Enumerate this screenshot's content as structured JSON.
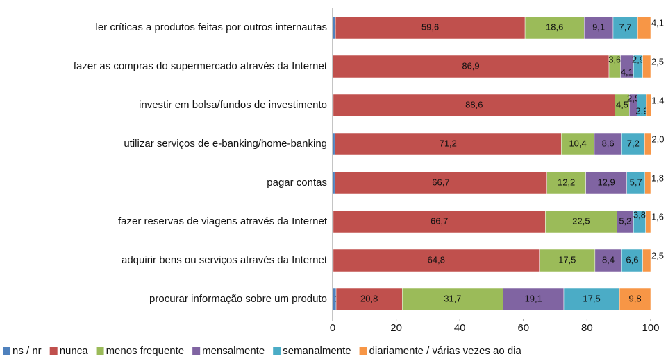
{
  "chart_data": {
    "type": "stacked-bar-horizontal",
    "categories": [
      "ler críticas a produtos feitas por outros internautas",
      "fazer as compras do supermercado através da Internet",
      "investir em bolsa/fundos de investimento",
      "utilizar serviços de e-banking/home-banking",
      "pagar contas",
      "fazer reservas de viagens através da Internet",
      "adquirir bens ou serviços através da Internet",
      "procurar informação sobre um produto"
    ],
    "series": [
      {
        "name": "ns / nr",
        "color": "#4f81bd",
        "values": [
          0.9,
          0.0,
          0.2,
          0.7,
          0.7,
          0.2,
          0.2,
          1.1
        ],
        "value_labels": [
          "0,9",
          "0,0",
          "0,2",
          "0,7",
          "0,7",
          "0,2",
          "0,2",
          "1,1"
        ]
      },
      {
        "name": "nunca",
        "color": "#c0504d",
        "values": [
          59.6,
          86.9,
          88.6,
          71.2,
          66.7,
          66.7,
          64.8,
          20.8
        ],
        "value_labels": [
          "59,6",
          "86,9",
          "88,6",
          "71,2",
          "66,7",
          "66,7",
          "64,8",
          "20,8"
        ]
      },
      {
        "name": "menos frequente",
        "color": "#9bbb59",
        "values": [
          18.6,
          3.6,
          4.5,
          10.4,
          12.2,
          22.5,
          17.5,
          31.7
        ],
        "value_labels": [
          "18,6",
          "3,6",
          "4,5",
          "10,4",
          "12,2",
          "22,5",
          "17,5",
          "31,7"
        ]
      },
      {
        "name": "mensalmente",
        "color": "#8064a2",
        "values": [
          9.1,
          4.1,
          2.5,
          8.6,
          12.9,
          5.2,
          8.4,
          19.1
        ],
        "value_labels": [
          "9,1",
          "4,1",
          "2,5",
          "8,6",
          "12,9",
          "5,2",
          "8,4",
          "19,1"
        ]
      },
      {
        "name": "semanalmente",
        "color": "#4bacc6",
        "values": [
          7.7,
          2.9,
          2.9,
          7.2,
          5.7,
          3.8,
          6.6,
          17.5
        ],
        "value_labels": [
          "7,7",
          "2,9",
          "2,9",
          "7,2",
          "5,7",
          "3,8",
          "6,6",
          "17,5"
        ]
      },
      {
        "name": "diariamente / várias vezes ao dia",
        "color": "#f79646",
        "values": [
          4.1,
          2.5,
          1.4,
          2.0,
          1.8,
          1.6,
          2.5,
          9.8
        ],
        "value_labels": [
          "4,1",
          "2,5",
          "1,4",
          "2,0",
          "1,8",
          "1,6",
          "2,5",
          "9,8"
        ]
      }
    ],
    "xlim": [
      0,
      100
    ],
    "xticks": [
      0,
      20,
      40,
      60,
      80,
      100
    ],
    "legend": "bottom"
  }
}
